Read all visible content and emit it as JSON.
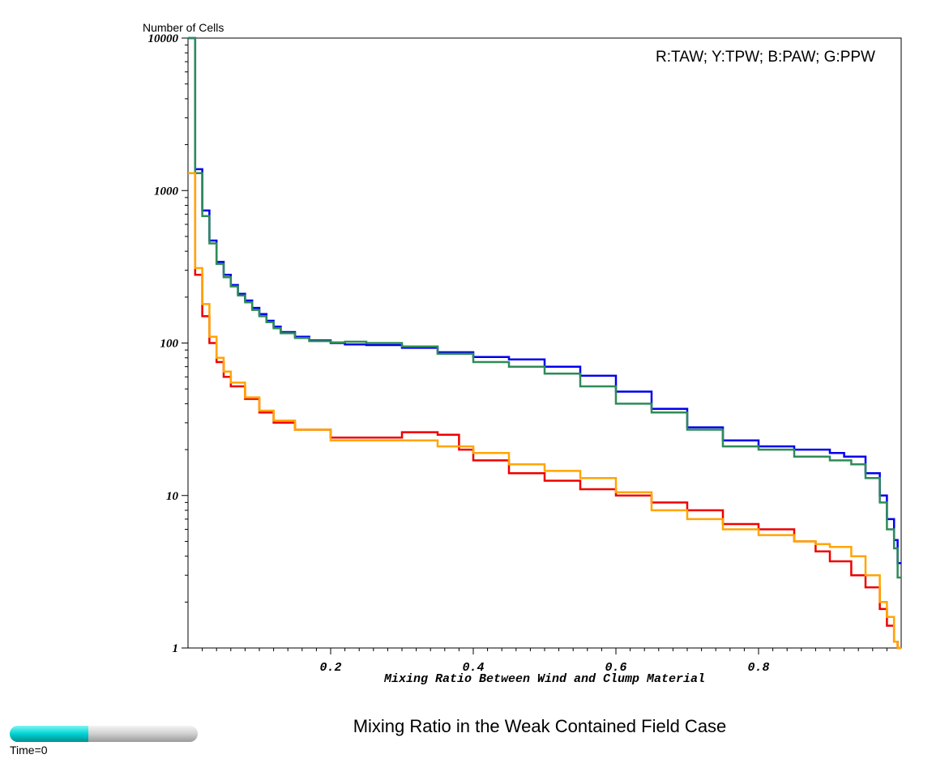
{
  "chart_data": {
    "type": "line",
    "step": true,
    "title": "Mixing Ratio in the Weak Contained Field Case",
    "xlabel": "Mixing Ratio Between Wind and Clump Material",
    "ylabel": "Number of Cells",
    "yscale": "log",
    "xlim": [
      0.0,
      1.0
    ],
    "ylim": [
      1,
      10000
    ],
    "x_ticks": [
      0.2,
      0.4,
      0.6,
      0.8
    ],
    "x_tick_labels": [
      "0.2",
      "0.4",
      "0.6",
      "0.8"
    ],
    "y_ticks": [
      1,
      10,
      100,
      1000,
      10000
    ],
    "y_tick_labels": [
      "1",
      "10",
      "100",
      "1000",
      "10000"
    ],
    "grid": false,
    "legend_text": "R:TAW; Y:TPW; B:PAW; G:PPW",
    "legend_position": "top-right",
    "series": [
      {
        "color": "#0000ee",
        "points": [
          [
            0.005,
            10000
          ],
          [
            0.01,
            1380
          ],
          [
            0.02,
            740
          ],
          [
            0.03,
            470
          ],
          [
            0.04,
            340
          ],
          [
            0.05,
            280
          ],
          [
            0.06,
            240
          ],
          [
            0.07,
            210
          ],
          [
            0.08,
            190
          ],
          [
            0.09,
            170
          ],
          [
            0.1,
            155
          ],
          [
            0.11,
            140
          ],
          [
            0.12,
            128
          ],
          [
            0.13,
            118
          ],
          [
            0.15,
            110
          ],
          [
            0.17,
            104
          ],
          [
            0.2,
            100
          ],
          [
            0.22,
            98
          ],
          [
            0.25,
            97
          ],
          [
            0.3,
            93
          ],
          [
            0.35,
            87
          ],
          [
            0.4,
            81
          ],
          [
            0.45,
            78
          ],
          [
            0.5,
            70
          ],
          [
            0.55,
            61
          ],
          [
            0.6,
            48
          ],
          [
            0.65,
            37
          ],
          [
            0.7,
            28
          ],
          [
            0.75,
            23
          ],
          [
            0.8,
            21
          ],
          [
            0.85,
            20
          ],
          [
            0.9,
            19
          ],
          [
            0.92,
            18
          ],
          [
            0.95,
            14
          ],
          [
            0.97,
            10
          ],
          [
            0.98,
            7
          ],
          [
            0.99,
            5.1
          ],
          [
            0.995,
            3.6
          ]
        ]
      },
      {
        "color": "#2e8b57",
        "points": [
          [
            0.005,
            10000
          ],
          [
            0.01,
            1300
          ],
          [
            0.02,
            680
          ],
          [
            0.03,
            450
          ],
          [
            0.04,
            330
          ],
          [
            0.05,
            270
          ],
          [
            0.06,
            235
          ],
          [
            0.07,
            205
          ],
          [
            0.08,
            185
          ],
          [
            0.09,
            165
          ],
          [
            0.1,
            150
          ],
          [
            0.11,
            137
          ],
          [
            0.12,
            125
          ],
          [
            0.13,
            116
          ],
          [
            0.15,
            108
          ],
          [
            0.17,
            103
          ],
          [
            0.2,
            101
          ],
          [
            0.22,
            102
          ],
          [
            0.25,
            100
          ],
          [
            0.3,
            95
          ],
          [
            0.35,
            85
          ],
          [
            0.4,
            75
          ],
          [
            0.45,
            70
          ],
          [
            0.5,
            63
          ],
          [
            0.55,
            52
          ],
          [
            0.6,
            40
          ],
          [
            0.65,
            35
          ],
          [
            0.7,
            27
          ],
          [
            0.75,
            21
          ],
          [
            0.8,
            20
          ],
          [
            0.85,
            18
          ],
          [
            0.9,
            17
          ],
          [
            0.93,
            16
          ],
          [
            0.95,
            13
          ],
          [
            0.97,
            9
          ],
          [
            0.98,
            6
          ],
          [
            0.99,
            4.5
          ],
          [
            0.995,
            2.9
          ]
        ]
      },
      {
        "color": "#ee0000",
        "points": [
          [
            0.005,
            1300
          ],
          [
            0.01,
            280
          ],
          [
            0.02,
            150
          ],
          [
            0.03,
            100
          ],
          [
            0.04,
            75
          ],
          [
            0.05,
            60
          ],
          [
            0.06,
            52
          ],
          [
            0.08,
            43
          ],
          [
            0.1,
            35
          ],
          [
            0.12,
            30
          ],
          [
            0.15,
            27
          ],
          [
            0.2,
            24
          ],
          [
            0.25,
            24
          ],
          [
            0.3,
            26
          ],
          [
            0.35,
            25
          ],
          [
            0.38,
            20
          ],
          [
            0.4,
            17
          ],
          [
            0.45,
            14
          ],
          [
            0.5,
            12.5
          ],
          [
            0.55,
            11
          ],
          [
            0.6,
            10
          ],
          [
            0.65,
            9
          ],
          [
            0.7,
            8
          ],
          [
            0.75,
            6.5
          ],
          [
            0.8,
            6
          ],
          [
            0.85,
            5
          ],
          [
            0.88,
            4.3
          ],
          [
            0.9,
            3.7
          ],
          [
            0.93,
            3
          ],
          [
            0.95,
            2.5
          ],
          [
            0.97,
            1.8
          ],
          [
            0.98,
            1.4
          ],
          [
            0.99,
            1.1
          ],
          [
            0.995,
            1.0
          ]
        ]
      },
      {
        "color": "#ffa500",
        "points": [
          [
            0.005,
            1300
          ],
          [
            0.01,
            310
          ],
          [
            0.02,
            180
          ],
          [
            0.03,
            110
          ],
          [
            0.04,
            80
          ],
          [
            0.05,
            65
          ],
          [
            0.06,
            55
          ],
          [
            0.08,
            44
          ],
          [
            0.1,
            36
          ],
          [
            0.12,
            31
          ],
          [
            0.15,
            27
          ],
          [
            0.2,
            23
          ],
          [
            0.25,
            23
          ],
          [
            0.3,
            23
          ],
          [
            0.35,
            21
          ],
          [
            0.4,
            19
          ],
          [
            0.45,
            16
          ],
          [
            0.5,
            14.5
          ],
          [
            0.55,
            13
          ],
          [
            0.6,
            10.5
          ],
          [
            0.65,
            8
          ],
          [
            0.7,
            7
          ],
          [
            0.75,
            6
          ],
          [
            0.8,
            5.5
          ],
          [
            0.85,
            5
          ],
          [
            0.88,
            4.8
          ],
          [
            0.9,
            4.6
          ],
          [
            0.93,
            4
          ],
          [
            0.95,
            3
          ],
          [
            0.97,
            2
          ],
          [
            0.98,
            1.6
          ],
          [
            0.99,
            1.1
          ],
          [
            0.995,
            1.0
          ]
        ]
      }
    ]
  },
  "time_slider": {
    "label": "Time=0",
    "fraction": 0.42
  }
}
